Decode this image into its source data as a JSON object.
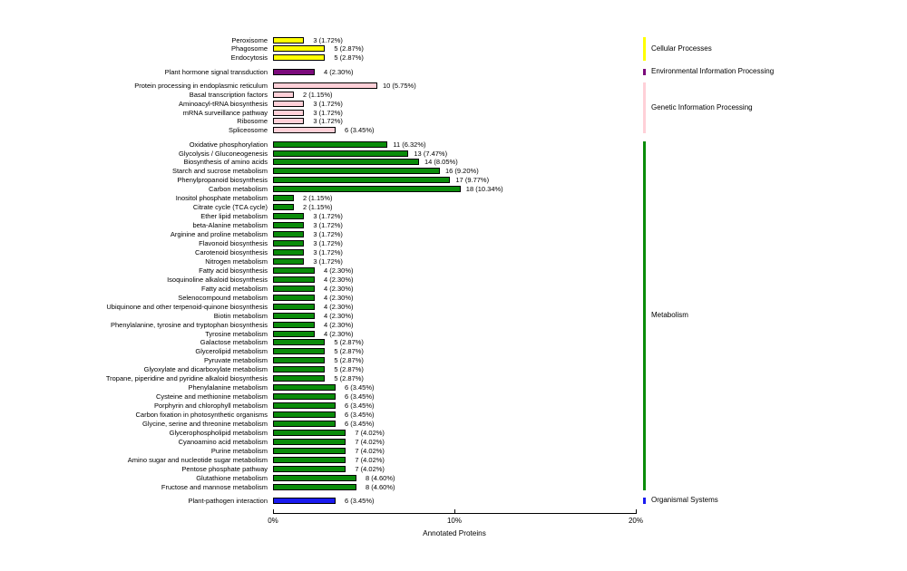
{
  "chart_data": {
    "type": "bar",
    "orientation": "horizontal",
    "title": "",
    "xlabel": "Annotated Proteins",
    "x_tick_labels": [
      "0%",
      "10%",
      "20%"
    ],
    "xlim_pct": [
      0,
      20
    ],
    "grid": false,
    "legend_position": "right",
    "value_format": "count (percent%)",
    "groups": [
      {
        "name": "Cellular Processes",
        "color": "#ffff00",
        "rows": [
          {
            "label": "Peroxisome",
            "count": 3,
            "pct": "1.72"
          },
          {
            "label": "Phagosome",
            "count": 5,
            "pct": "2.87"
          },
          {
            "label": "Endocytosis",
            "count": 5,
            "pct": "2.87"
          }
        ]
      },
      {
        "name": "Environmental Information Processing",
        "color": "#7b0a7b",
        "rows": [
          {
            "label": "Plant hormone signal transduction",
            "count": 4,
            "pct": "2.30"
          }
        ]
      },
      {
        "name": "Genetic Information Processing",
        "color": "#ffd0d8",
        "rows": [
          {
            "label": "Protein processing in endoplasmic reticulum",
            "count": 10,
            "pct": "5.75"
          },
          {
            "label": "Basal transcription factors",
            "count": 2,
            "pct": "1.15"
          },
          {
            "label": "Aminoacyl-tRNA biosynthesis",
            "count": 3,
            "pct": "1.72"
          },
          {
            "label": "mRNA surveillance pathway",
            "count": 3,
            "pct": "1.72"
          },
          {
            "label": "Ribosome",
            "count": 3,
            "pct": "1.72"
          },
          {
            "label": "Spliceosome",
            "count": 6,
            "pct": "3.45"
          }
        ]
      },
      {
        "name": "Metabolism",
        "color": "#0a8c0a",
        "rows": [
          {
            "label": "Oxidative phosphorylation",
            "count": 11,
            "pct": "6.32"
          },
          {
            "label": "Glycolysis / Gluconeogenesis",
            "count": 13,
            "pct": "7.47"
          },
          {
            "label": "Biosynthesis of amino acids",
            "count": 14,
            "pct": "8.05"
          },
          {
            "label": "Starch and sucrose metabolism",
            "count": 16,
            "pct": "9.20"
          },
          {
            "label": "Phenylpropanoid biosynthesis",
            "count": 17,
            "pct": "9.77"
          },
          {
            "label": "Carbon metabolism",
            "count": 18,
            "pct": "10.34"
          },
          {
            "label": "Inositol phosphate metabolism",
            "count": 2,
            "pct": "1.15"
          },
          {
            "label": "Citrate cycle (TCA cycle)",
            "count": 2,
            "pct": "1.15"
          },
          {
            "label": "Ether lipid metabolism",
            "count": 3,
            "pct": "1.72"
          },
          {
            "label": "beta-Alanine metabolism",
            "count": 3,
            "pct": "1.72"
          },
          {
            "label": "Arginine and proline metabolism",
            "count": 3,
            "pct": "1.72"
          },
          {
            "label": "Flavonoid biosynthesis",
            "count": 3,
            "pct": "1.72"
          },
          {
            "label": "Carotenoid biosynthesis",
            "count": 3,
            "pct": "1.72"
          },
          {
            "label": "Nitrogen metabolism",
            "count": 3,
            "pct": "1.72"
          },
          {
            "label": "Fatty acid biosynthesis",
            "count": 4,
            "pct": "2.30"
          },
          {
            "label": "Isoquinoline alkaloid biosynthesis",
            "count": 4,
            "pct": "2.30"
          },
          {
            "label": "Fatty acid metabolism",
            "count": 4,
            "pct": "2.30"
          },
          {
            "label": "Selenocompound metabolism",
            "count": 4,
            "pct": "2.30"
          },
          {
            "label": "Ubiquinone and other terpenoid-quinone biosynthesis",
            "count": 4,
            "pct": "2.30"
          },
          {
            "label": "Biotin metabolism",
            "count": 4,
            "pct": "2.30"
          },
          {
            "label": "Phenylalanine, tyrosine and tryptophan biosynthesis",
            "count": 4,
            "pct": "2.30"
          },
          {
            "label": "Tyrosine metabolism",
            "count": 4,
            "pct": "2.30"
          },
          {
            "label": "Galactose metabolism",
            "count": 5,
            "pct": "2.87"
          },
          {
            "label": "Glycerolipid metabolism",
            "count": 5,
            "pct": "2.87"
          },
          {
            "label": "Pyruvate metabolism",
            "count": 5,
            "pct": "2.87"
          },
          {
            "label": "Glyoxylate and dicarboxylate metabolism",
            "count": 5,
            "pct": "2.87"
          },
          {
            "label": "Tropane, piperidine and pyridine alkaloid biosynthesis",
            "count": 5,
            "pct": "2.87"
          },
          {
            "label": "Phenylalanine metabolism",
            "count": 6,
            "pct": "3.45"
          },
          {
            "label": "Cysteine and methionine metabolism",
            "count": 6,
            "pct": "3.45"
          },
          {
            "label": "Porphyrin and chlorophyll metabolism",
            "count": 6,
            "pct": "3.45"
          },
          {
            "label": "Carbon fixation in photosynthetic organisms",
            "count": 6,
            "pct": "3.45"
          },
          {
            "label": "Glycine, serine and threonine metabolism",
            "count": 6,
            "pct": "3.45"
          },
          {
            "label": "Glycerophospholipid metabolism",
            "count": 7,
            "pct": "4.02"
          },
          {
            "label": "Cyanoamino acid metabolism",
            "count": 7,
            "pct": "4.02"
          },
          {
            "label": "Purine metabolism",
            "count": 7,
            "pct": "4.02"
          },
          {
            "label": "Amino sugar and nucleotide sugar metabolism",
            "count": 7,
            "pct": "4.02"
          },
          {
            "label": "Pentose phosphate pathway",
            "count": 7,
            "pct": "4.02"
          },
          {
            "label": "Glutathione metabolism",
            "count": 8,
            "pct": "4.60"
          },
          {
            "label": "Fructose and mannose metabolism",
            "count": 8,
            "pct": "4.60"
          }
        ]
      },
      {
        "name": "Organismal Systems",
        "color": "#1a1af0",
        "rows": [
          {
            "label": "Plant-pathogen interaction",
            "count": 6,
            "pct": "3.45"
          }
        ]
      }
    ]
  }
}
